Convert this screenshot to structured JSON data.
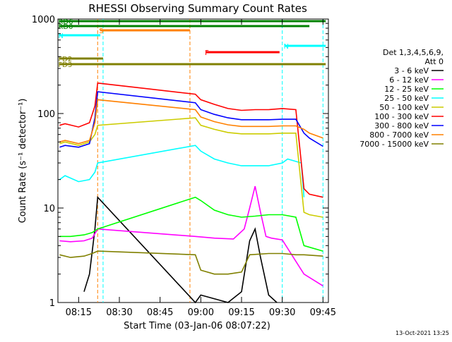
{
  "chart_data": {
    "type": "line",
    "title": "RHESSI Observing Summary Count Rates",
    "xlabel": "Start Time (03-Jan-06 08:07:22)",
    "ylabel": "Count Rate (s⁻¹ detector⁻¹)",
    "y_scale": "log",
    "ylim": [
      1,
      1000
    ],
    "xlim": [
      "08:07:22",
      "09:47:00"
    ],
    "x_ticks": [
      "08:15",
      "08:30",
      "08:45",
      "09:00",
      "09:15",
      "09:30",
      "09:45"
    ],
    "y_ticks": [
      "1",
      "10",
      "100",
      "1000"
    ],
    "footer": "13-Oct-2021 13:25",
    "legend": {
      "position": "right",
      "header": [
        "Det 1,3,4,5,6,9,",
        "Att 0"
      ]
    },
    "series": [
      {
        "name": "3 - 6 keV",
        "color": "#000000",
        "x": [
          "08:08",
          "08:10",
          "08:13",
          "08:17",
          "08:19",
          "08:21",
          "08:22",
          "08:58",
          "09:00",
          "09:10",
          "09:15",
          "09:18",
          "09:20",
          "09:22",
          "09:25",
          "09:28"
        ],
        "y": [
          null,
          null,
          null,
          1.3,
          2.0,
          6.0,
          13.0,
          1.0,
          1.2,
          1.0,
          1.3,
          4.5,
          6.0,
          3.0,
          1.2,
          1.0
        ]
      },
      {
        "name": "6 - 12 keV",
        "color": "#ff00ff",
        "x": [
          "08:08",
          "08:12",
          "08:17",
          "08:20",
          "08:22",
          "08:58",
          "09:05",
          "09:12",
          "09:16",
          "09:18",
          "09:20",
          "09:22",
          "09:24",
          "09:26",
          "09:30",
          "09:38",
          "09:45"
        ],
        "y": [
          4.5,
          4.4,
          4.5,
          4.8,
          6.0,
          5.0,
          4.8,
          4.7,
          6.0,
          10.0,
          17.0,
          9.0,
          5.0,
          4.8,
          4.6,
          2.0,
          1.5
        ]
      },
      {
        "name": "12 - 25 keV",
        "color": "#00ff00",
        "x": [
          "08:08",
          "08:12",
          "08:17",
          "08:20",
          "08:22",
          "08:58",
          "09:00",
          "09:05",
          "09:10",
          "09:15",
          "09:20",
          "09:25",
          "09:30",
          "09:35",
          "09:38",
          "09:45"
        ],
        "y": [
          5.0,
          5.0,
          5.2,
          5.5,
          6.0,
          13.0,
          12.0,
          9.5,
          8.5,
          8.0,
          8.2,
          8.5,
          8.5,
          8.0,
          4.0,
          3.5
        ]
      },
      {
        "name": "25 - 50 keV",
        "color": "#00ffff",
        "x": [
          "08:08",
          "08:10",
          "08:15",
          "08:19",
          "08:21",
          "08:22",
          "08:58",
          "09:00",
          "09:05",
          "09:10",
          "09:15",
          "09:20",
          "09:25",
          "09:30",
          "09:32",
          "09:37",
          "09:38"
        ],
        "y": [
          20.0,
          22.0,
          19.0,
          20.0,
          24.0,
          30.0,
          46.0,
          40.0,
          33.0,
          30.0,
          28.0,
          28.0,
          28.0,
          30.0,
          33.0,
          30.0,
          13.0
        ]
      },
      {
        "name": "50 - 100 keV",
        "color": "#cccc00",
        "x": [
          "08:08",
          "08:10",
          "08:15",
          "08:19",
          "08:21",
          "08:22",
          "08:58",
          "09:00",
          "09:05",
          "09:10",
          "09:15",
          "09:20",
          "09:25",
          "09:30",
          "09:35",
          "09:38",
          "09:40",
          "09:45"
        ],
        "y": [
          48.0,
          50.0,
          46.0,
          50.0,
          60.0,
          75.0,
          90.0,
          75.0,
          68.0,
          63.0,
          61.0,
          61.0,
          61.0,
          62.0,
          62.0,
          9.0,
          8.5,
          8.0
        ]
      },
      {
        "name": "100 - 300 keV",
        "color": "#ff0000",
        "x": [
          "08:08",
          "08:10",
          "08:15",
          "08:19",
          "08:21",
          "08:22",
          "08:58",
          "09:00",
          "09:05",
          "09:10",
          "09:15",
          "09:20",
          "09:25",
          "09:30",
          "09:35",
          "09:38",
          "09:40",
          "09:45"
        ],
        "y": [
          75.0,
          78.0,
          72.0,
          80.0,
          120.0,
          210.0,
          160.0,
          140.0,
          125.0,
          113.0,
          108.0,
          110.0,
          110.0,
          113.0,
          110.0,
          16.0,
          14.0,
          13.0
        ]
      },
      {
        "name": "300 - 800 keV",
        "color": "#0000ff",
        "x": [
          "08:08",
          "08:10",
          "08:15",
          "08:19",
          "08:21",
          "08:22",
          "08:58",
          "09:00",
          "09:05",
          "09:10",
          "09:15",
          "09:20",
          "09:25",
          "09:30",
          "09:35",
          "09:38",
          "09:40",
          "09:45"
        ],
        "y": [
          44.0,
          46.0,
          44.0,
          48.0,
          90.0,
          170.0,
          130.0,
          110.0,
          98.0,
          90.0,
          86.0,
          86.0,
          86.0,
          87.0,
          87.0,
          62.0,
          55.0,
          45.0
        ]
      },
      {
        "name": "800 - 7000 keV",
        "color": "#ff8000",
        "x": [
          "08:08",
          "08:10",
          "08:15",
          "08:19",
          "08:21",
          "08:22",
          "08:58",
          "09:00",
          "09:05",
          "09:10",
          "09:15",
          "09:20",
          "09:25",
          "09:30",
          "09:35",
          "09:38",
          "09:40",
          "09:45"
        ],
        "y": [
          50.0,
          52.0,
          48.0,
          52.0,
          80.0,
          140.0,
          110.0,
          92.0,
          82.0,
          76.0,
          73.0,
          73.0,
          73.0,
          74.0,
          74.0,
          68.0,
          62.0,
          55.0
        ]
      },
      {
        "name": "7000 - 15000 keV",
        "color": "#808000",
        "x": [
          "08:08",
          "08:12",
          "08:17",
          "08:20",
          "08:22",
          "08:58",
          "09:00",
          "09:05",
          "09:10",
          "09:15",
          "09:18",
          "09:25",
          "09:30",
          "09:35",
          "09:38",
          "09:45"
        ],
        "y": [
          3.2,
          3.0,
          3.1,
          3.3,
          3.5,
          3.2,
          2.2,
          2.0,
          2.0,
          2.1,
          3.2,
          3.3,
          3.3,
          3.2,
          3.2,
          3.1
        ]
      }
    ],
    "annotations": {
      "flags": [
        {
          "label": "S",
          "color": "#ff8000",
          "start": "08:23",
          "end": "08:56"
        },
        {
          "label": "N",
          "color": "#00ffff",
          "start": "08:08",
          "end": "08:23"
        },
        {
          "label": "N",
          "color": "#00ffff",
          "start": "09:31",
          "end": "09:46"
        },
        {
          "label": "F",
          "color": "#ff0000",
          "start": "09:02",
          "end": "09:29"
        },
        {
          "label": "FD2",
          "color": "#808000",
          "start": "08:08",
          "end": "08:24"
        },
        {
          "label": "FD3",
          "color": "#808000",
          "start": "08:08",
          "end": "09:46"
        },
        {
          "label": "RD0",
          "color": "#008000",
          "start": "08:08",
          "end": "09:40"
        },
        {
          "label": "RD6",
          "color": "#008000",
          "start": "08:08",
          "end": "09:46"
        }
      ],
      "vlines": [
        {
          "time": "08:22",
          "color": "#ff8000"
        },
        {
          "time": "08:24",
          "color": "#00ffff"
        },
        {
          "time": "08:56",
          "color": "#ff8000"
        },
        {
          "time": "09:30",
          "color": "#00ffff"
        },
        {
          "time": "09:45",
          "color": "#00ffff"
        }
      ]
    }
  }
}
